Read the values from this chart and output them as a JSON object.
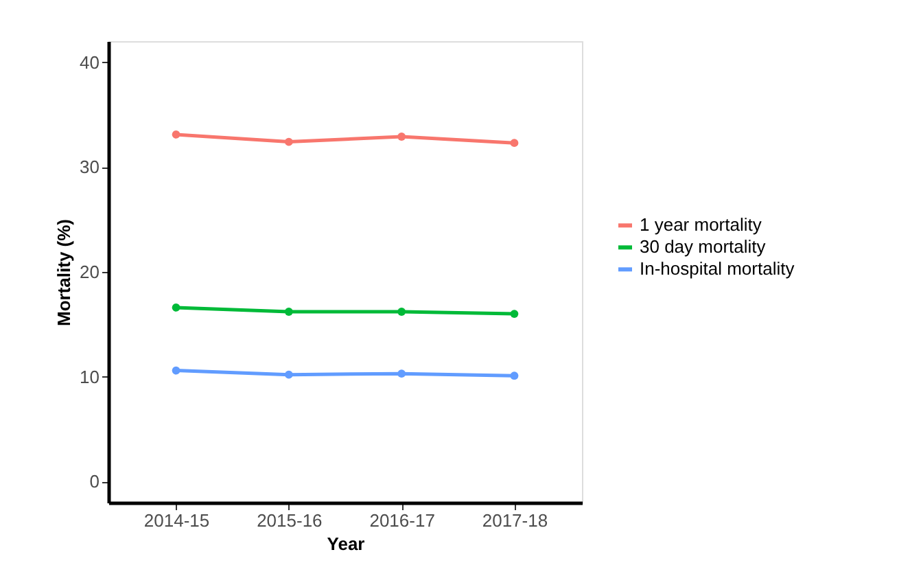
{
  "chart_data": {
    "type": "line",
    "xlabel": "Year",
    "ylabel": "Mortality (%)",
    "categories": [
      "2014-15",
      "2015-16",
      "2016-17",
      "2017-18"
    ],
    "series": [
      {
        "name": "1 year mortality",
        "color": "#f8766d",
        "values": [
          33.1,
          32.4,
          32.9,
          32.3
        ]
      },
      {
        "name": "30 day mortality",
        "color": "#00ba38",
        "values": [
          16.6,
          16.2,
          16.2,
          16.0
        ]
      },
      {
        "name": "In-hospital mortality",
        "color": "#619cff",
        "values": [
          10.6,
          10.2,
          10.3,
          10.1
        ]
      }
    ],
    "ylim": [
      -2,
      42
    ],
    "yticks": [
      0,
      10,
      20,
      30,
      40
    ],
    "grid": false,
    "legend": "right",
    "marker": "circle",
    "line_style": "solid"
  }
}
